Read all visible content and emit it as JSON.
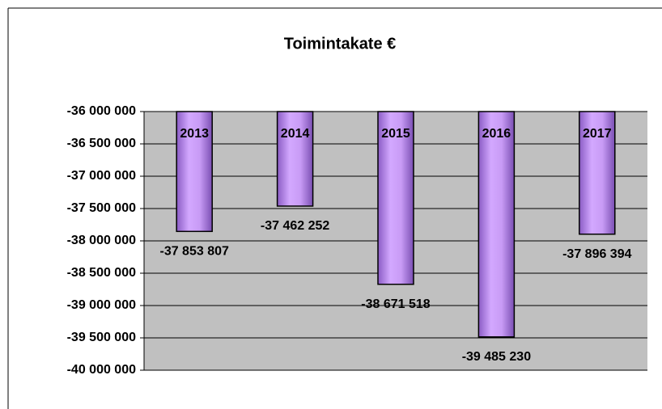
{
  "chart_data": {
    "type": "bar",
    "title": "Toimintakate €",
    "categories": [
      "2013",
      "2014",
      "2015",
      "2016",
      "2017"
    ],
    "values": [
      -37853807,
      -37462252,
      -38671518,
      -39485230,
      -37896394
    ],
    "value_labels": [
      "-37 853 807",
      "-37 462 252",
      "-38 671 518",
      "-39 485 230",
      "-37 896 394"
    ],
    "color": "#c89bf5",
    "ylim": [
      -40000000,
      -36000000
    ],
    "yticks": [
      {
        "value": -36000000,
        "label": "-36 000 000"
      },
      {
        "value": -36500000,
        "label": "-36 500 000"
      },
      {
        "value": -37000000,
        "label": "-37 000 000"
      },
      {
        "value": -37500000,
        "label": "-37 500 000"
      },
      {
        "value": -38000000,
        "label": "-38 000 000"
      },
      {
        "value": -38500000,
        "label": "-38 500 000"
      },
      {
        "value": -39000000,
        "label": "-39 000 000"
      },
      {
        "value": -39500000,
        "label": "-39 500 000"
      },
      {
        "value": -40000000,
        "label": "-40 000 000"
      }
    ],
    "grid": true
  }
}
